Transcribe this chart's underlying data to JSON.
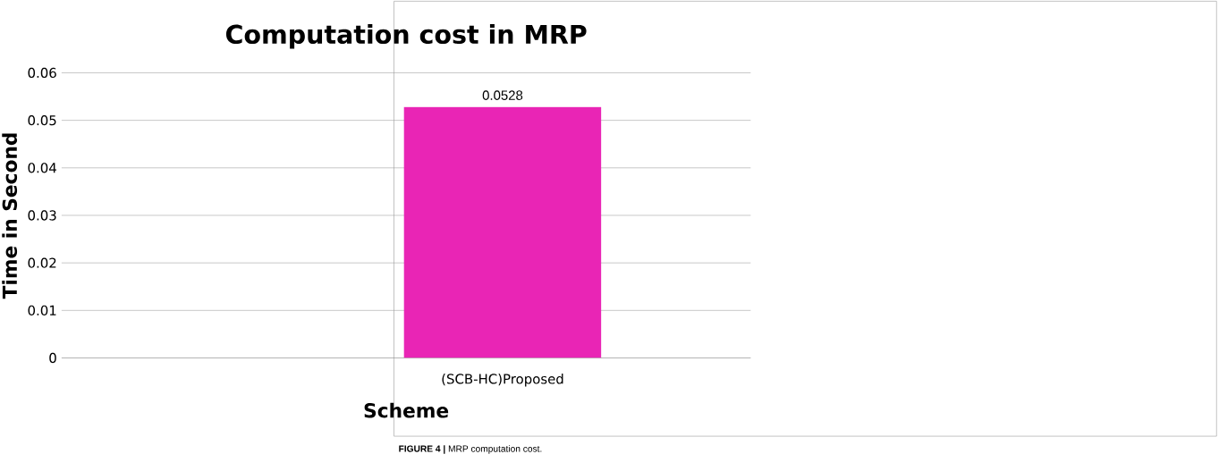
{
  "chart_data": {
    "type": "bar",
    "title": "Computation cost in MRP",
    "xlabel": "Scheme",
    "ylabel": "Time in Second",
    "categories": [
      "(SCB-HC)Proposed"
    ],
    "values": [
      0.0528
    ],
    "color": "#e925b5",
    "ylim": [
      0,
      0.06
    ],
    "yticks": [
      0,
      0.01,
      0.02,
      0.03,
      0.04,
      0.05,
      0.06
    ],
    "grid": "y",
    "data_labels": true,
    "annotations": [
      "**FIGURE 4 |** MRP computation cost."
    ]
  }
}
